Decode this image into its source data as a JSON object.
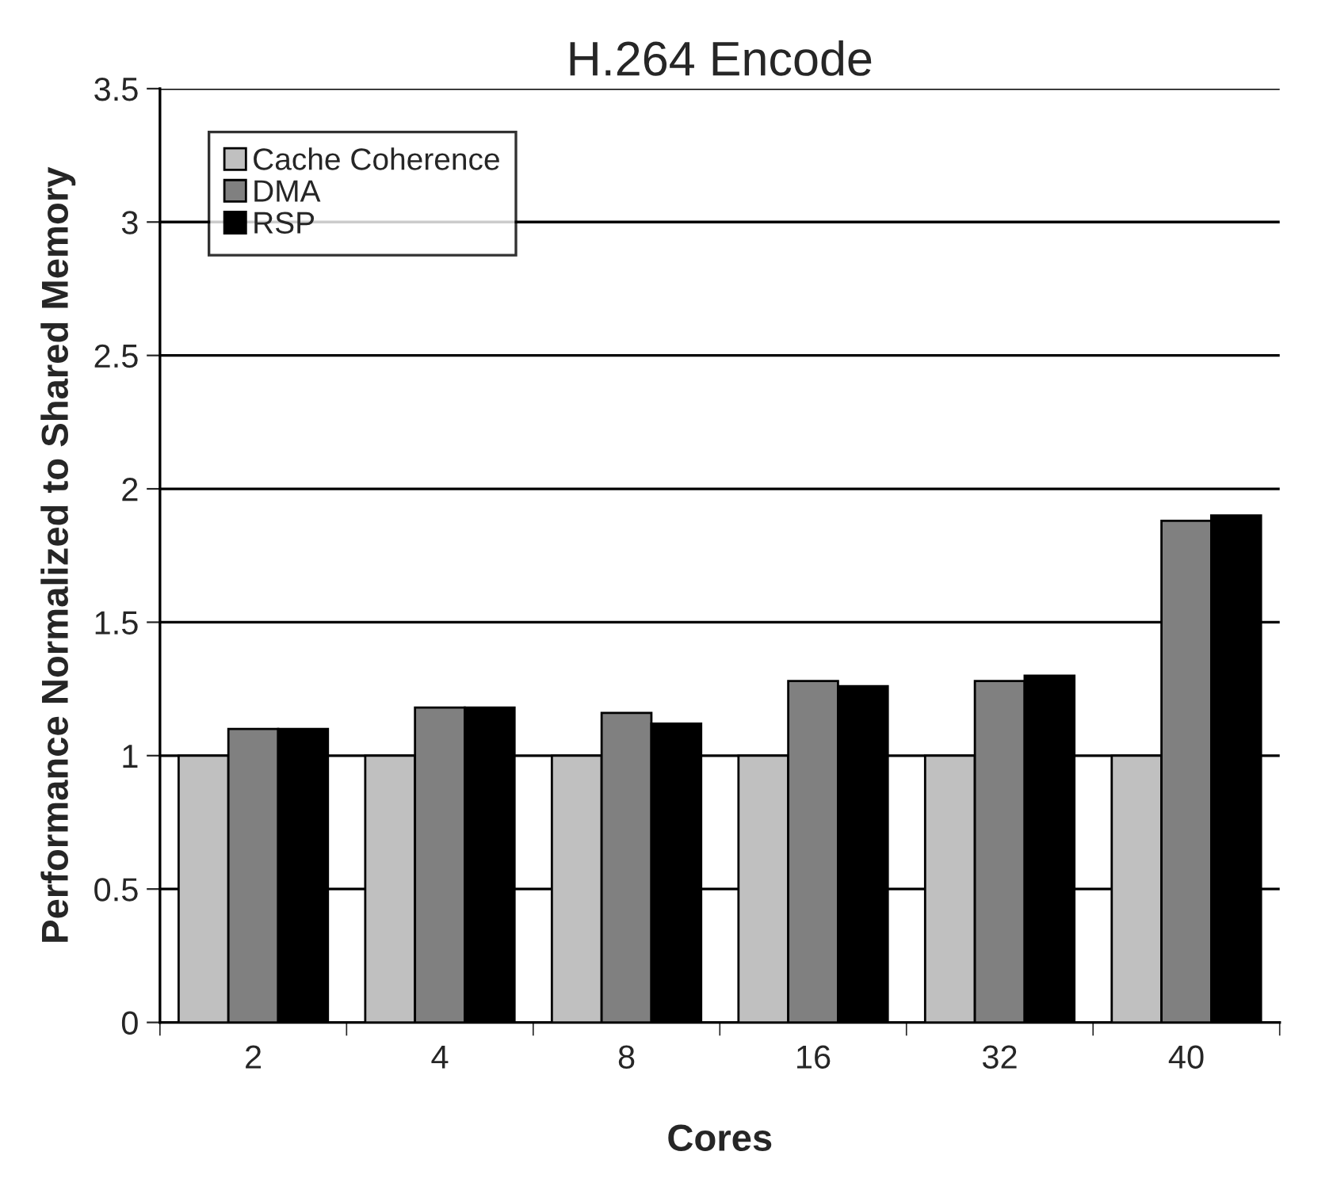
{
  "chart_data": {
    "type": "bar",
    "title": "H.264 Encode",
    "xlabel": "Cores",
    "ylabel": "Performance Normalized to Shared Memory",
    "categories": [
      "2",
      "4",
      "8",
      "16",
      "32",
      "40"
    ],
    "series": [
      {
        "name": "Cache Coherence",
        "color": "#c0c0c0",
        "values": [
          1,
          1,
          1,
          1,
          1,
          1
        ]
      },
      {
        "name": "DMA",
        "color": "#808080",
        "values": [
          1.1,
          1.18,
          1.16,
          1.28,
          1.28,
          1.88
        ]
      },
      {
        "name": "RSP",
        "color": "#000000",
        "values": [
          1.1,
          1.18,
          1.12,
          1.26,
          1.3,
          1.9
        ]
      }
    ],
    "ylim": [
      0,
      3.5
    ],
    "yticks": [
      0,
      0.5,
      1,
      1.5,
      2,
      2.5,
      3,
      3.5
    ],
    "grid": "y",
    "legend": "top left"
  }
}
